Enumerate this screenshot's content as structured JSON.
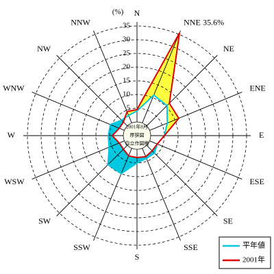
{
  "chart_data": {
    "type": "radar",
    "unit_label": "(%)",
    "center_text": [
      "2001年8月",
      "厚狭図",
      "自立作図機"
    ],
    "categories": [
      "N",
      "NNE",
      "NE",
      "ENE",
      "E",
      "ESE",
      "SE",
      "SSE",
      "S",
      "SSW",
      "SW",
      "WSW",
      "W",
      "WNW",
      "NW",
      "NNW"
    ],
    "ylim": [
      0,
      35
    ],
    "yticks": [
      5,
      10,
      15,
      20,
      25,
      30,
      35
    ],
    "grid": true,
    "legend_position": "bottom-right",
    "series": [
      {
        "name": "平年値",
        "color": "#00c8e0",
        "values": [
          4,
          11,
          10.5,
          7,
          5,
          3,
          4,
          4,
          5,
          10,
          10,
          6,
          5.5,
          5.5,
          3,
          3
        ]
      },
      {
        "name": "2001年",
        "color": "#e00000",
        "values": [
          4.5,
          35.6,
          11.7,
          11.5,
          5,
          3,
          2.8,
          3.3,
          3,
          3,
          2,
          2,
          4,
          2,
          2,
          4.5
        ],
        "value_labels": [
          null,
          "35.6%",
          null,
          null,
          null,
          null,
          null,
          null,
          null,
          null,
          null,
          null,
          null,
          null,
          null,
          null
        ]
      }
    ]
  }
}
